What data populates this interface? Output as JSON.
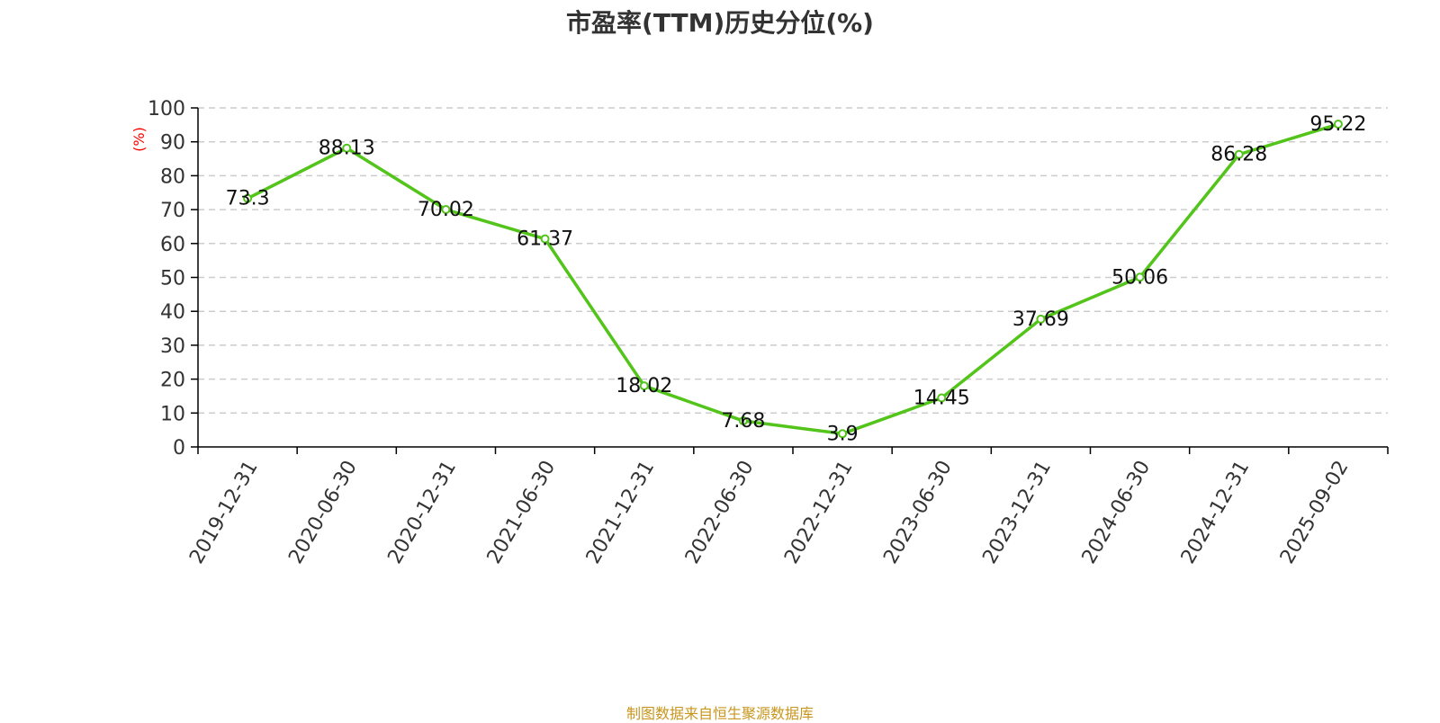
{
  "colors": {
    "line": "#52c41a",
    "axis": "#000000",
    "grid": "#cccccc",
    "ylabel": "#ff0000",
    "source": "#c8961e"
  },
  "source_note": "制图数据来自恒生聚源数据库",
  "chart_data": {
    "type": "line",
    "title": "市盈率(TTM)历史分位(%)",
    "xlabel": "",
    "ylabel": "(%)",
    "ylim": [
      0,
      100
    ],
    "yticks": [
      0,
      10,
      20,
      30,
      40,
      50,
      60,
      70,
      80,
      90,
      100
    ],
    "grid": true,
    "categories": [
      "2019-12-31",
      "2020-06-30",
      "2020-12-31",
      "2021-06-30",
      "2021-12-31",
      "2022-06-30",
      "2022-12-31",
      "2023-06-30",
      "2023-12-31",
      "2024-06-30",
      "2024-12-31",
      "2025-09-02"
    ],
    "series": [
      {
        "values": [
          73.3,
          88.13,
          70.02,
          61.37,
          18.02,
          7.68,
          3.9,
          14.45,
          37.69,
          50.06,
          86.28,
          95.22
        ],
        "labels": [
          "73.3",
          "88.13",
          "70.02",
          "61.37",
          "18.02",
          "7.68",
          "3.9",
          "14.45",
          "37.69",
          "50.06",
          "86.28",
          "95.22"
        ]
      }
    ]
  }
}
